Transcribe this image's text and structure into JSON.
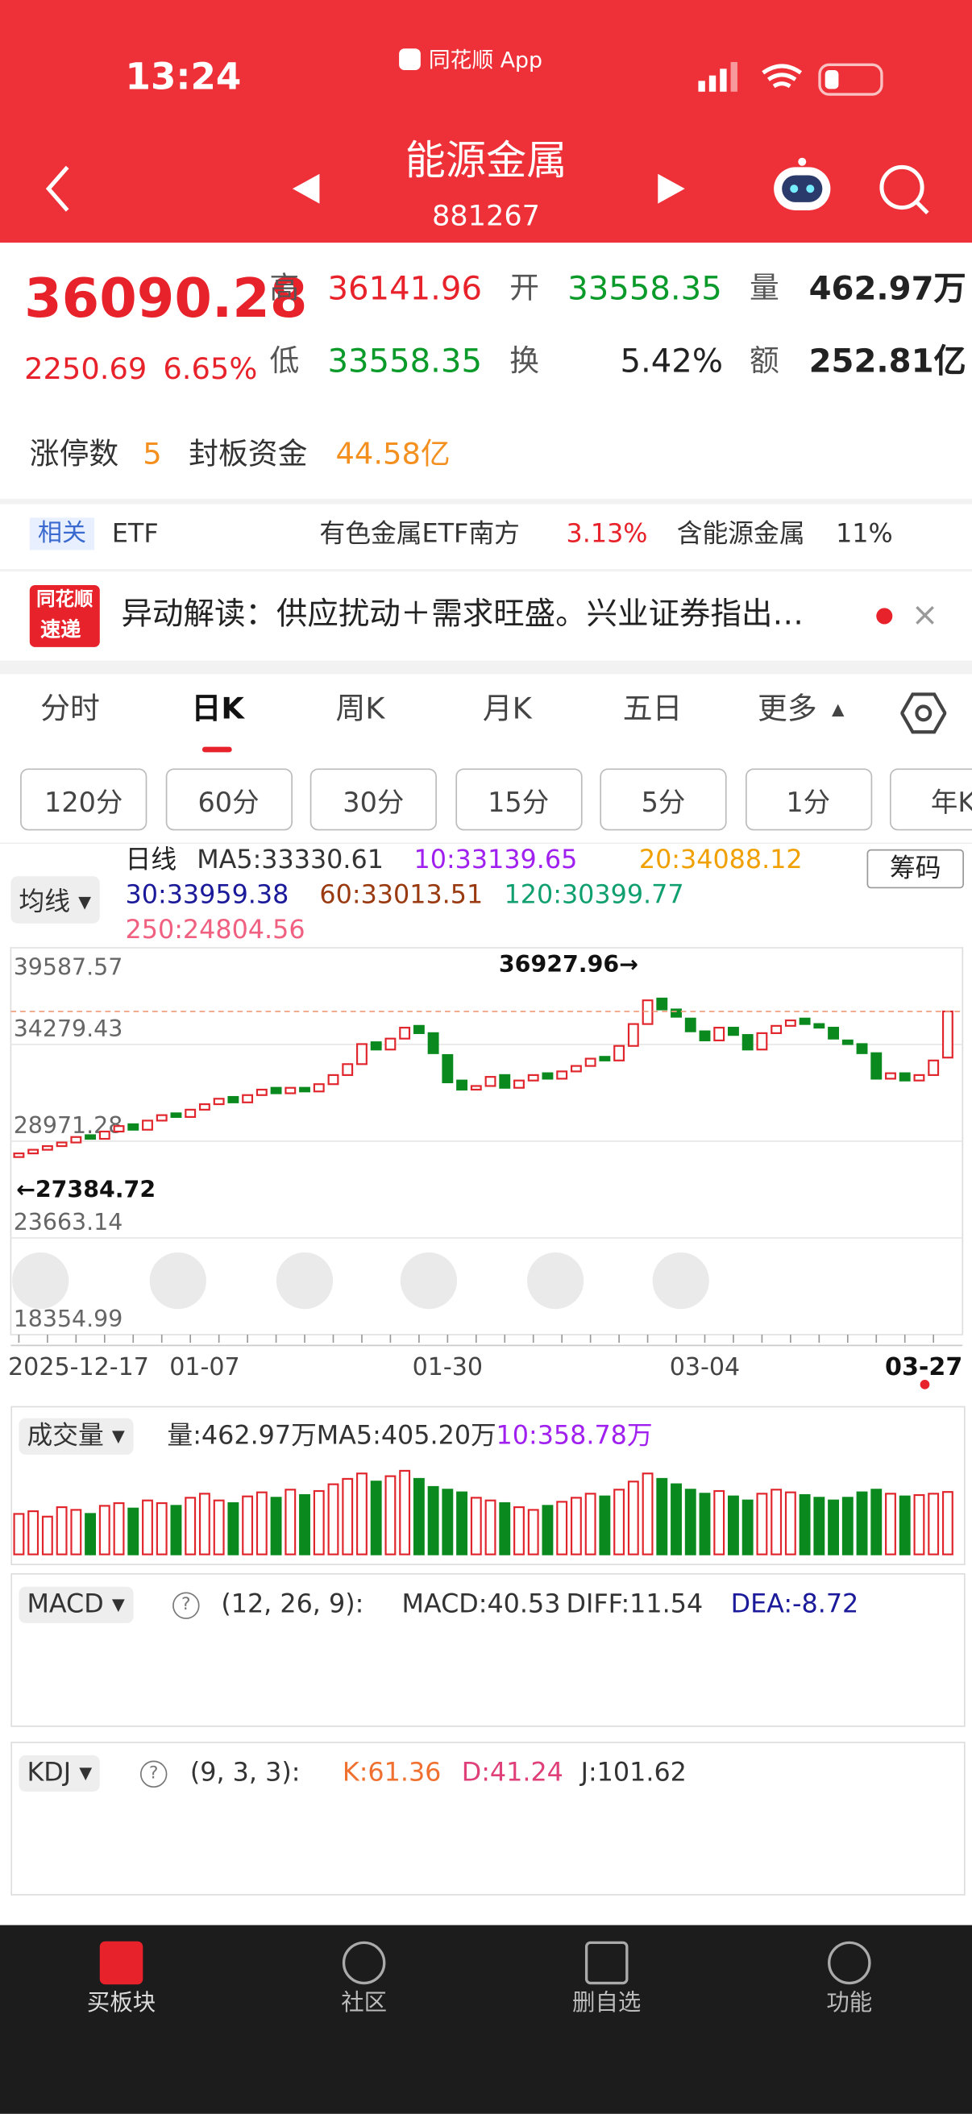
{
  "status_bar": {
    "time": "13:24",
    "app": "同花顺 App"
  },
  "header": {
    "title": "能源金属",
    "code": "881267"
  },
  "quote": {
    "price": "36090.28",
    "change": "2250.69",
    "change_pct": "6.65%",
    "row1": [
      {
        "label": "高",
        "value": "36141.96"
      },
      {
        "label": "开",
        "value": "33558.35"
      },
      {
        "label": "量",
        "value": "462.97万"
      }
    ],
    "row2": [
      {
        "label": "低",
        "value": "33558.35"
      },
      {
        "label": "换",
        "value": "5.42%"
      },
      {
        "label": "额",
        "value": "252.81亿"
      }
    ]
  },
  "limit": {
    "label": "涨停数",
    "count": "5",
    "fund_label": "封板资金",
    "fund": "44.58亿"
  },
  "etf": {
    "tag": "相关",
    "label": "ETF",
    "name": "有色金属ETF南方",
    "pct": "3.13%",
    "holding": "含能源金属",
    "holding_pct": "11%"
  },
  "news": {
    "logo_top": "同花顺",
    "logo_bottom": "速递",
    "text": "异动解读：供应扰动＋需求旺盛。兴业证券指出…"
  },
  "tabs": [
    "分时",
    "日K",
    "周K",
    "月K",
    "五日",
    "更多"
  ],
  "intervals": [
    "120分",
    "60分",
    "30分",
    "15分",
    "5分",
    "1分",
    "年K"
  ],
  "kline_header": {
    "selector": "均线",
    "period": "日线",
    "chip": "筹码",
    "ma": [
      {
        "text": "MA5:33330.61",
        "color": "#333333"
      },
      {
        "text": "10:33139.65",
        "color": "#a020f0"
      },
      {
        "text": "20:34088.12",
        "color": "#f0a000"
      },
      {
        "text": "30:33959.38",
        "color": "#1a1a9a"
      },
      {
        "text": "60:33013.51",
        "color": "#9a3a10"
      },
      {
        "text": "120:30399.77",
        "color": "#10a070"
      },
      {
        "text": "250:24804.56",
        "color": "#f06080"
      }
    ]
  },
  "volume_header": {
    "selector": "成交量",
    "texts": [
      {
        "text": "量:462.97万",
        "color": "#333333"
      },
      {
        "text": "MA5:405.20万",
        "color": "#333333"
      },
      {
        "text": "10:358.78万",
        "color": "#a020f0"
      }
    ]
  },
  "macd_header": {
    "selector": "MACD",
    "params": "(12, 26, 9):",
    "texts": [
      {
        "text": "MACD:40.53",
        "color": "#333333"
      },
      {
        "text": "DIFF:11.54",
        "color": "#333333"
      },
      {
        "text": "DEA:-8.72",
        "color": "#1a1a9a"
      }
    ]
  },
  "kdj_header": {
    "selector": "KDJ",
    "params": "(9, 3, 3):",
    "texts": [
      {
        "text": "K:61.36",
        "color": "#f07030"
      },
      {
        "text": "D:41.24",
        "color": "#e0407a"
      },
      {
        "text": "J:101.62",
        "color": "#333333"
      }
    ]
  },
  "nav": [
    "买板块",
    "社区",
    "删自选",
    "功能"
  ],
  "chart_data": [
    {
      "type": "candlestick",
      "up_color": "#e0262c",
      "down_color": "#0a8a1e",
      "categories": [
        "2025-12-17",
        null,
        null,
        null,
        null,
        null,
        null,
        null,
        null,
        null,
        null,
        null,
        null,
        "01-07",
        null,
        null,
        null,
        null,
        null,
        null,
        null,
        null,
        null,
        null,
        null,
        null,
        null,
        null,
        null,
        null,
        "01-30",
        null,
        null,
        null,
        null,
        null,
        null,
        null,
        null,
        null,
        null,
        null,
        null,
        null,
        null,
        null,
        null,
        null,
        "03-04",
        null,
        null,
        null,
        null,
        null,
        null,
        null,
        null,
        null,
        null,
        null,
        null,
        null,
        null,
        null,
        null,
        "03-27"
      ],
      "open": [
        28100,
        28300,
        28500,
        28700,
        28900,
        29300,
        29100,
        29500,
        29900,
        29600,
        30100,
        30500,
        30300,
        30700,
        31000,
        31400,
        31100,
        31500,
        31900,
        31600,
        31900,
        31700,
        32100,
        32600,
        33200,
        34400,
        34000,
        34600,
        35300,
        34900,
        33700,
        32300,
        31800,
        32000,
        32600,
        31900,
        32300,
        32700,
        32400,
        32800,
        33100,
        33600,
        33400,
        34200,
        35400,
        36800,
        36200,
        35700,
        35000,
        34500,
        35200,
        34800,
        34000,
        34900,
        35300,
        35700,
        35400,
        35200,
        34500,
        34300,
        33800,
        32400,
        32700,
        32300,
        32600,
        33558.35
      ],
      "close": [
        28300,
        28500,
        28700,
        28900,
        29200,
        29100,
        29500,
        29800,
        29600,
        30100,
        30400,
        30300,
        30700,
        31000,
        31300,
        31100,
        31500,
        31800,
        31600,
        31900,
        31700,
        32100,
        32600,
        33200,
        34300,
        34000,
        34600,
        35200,
        34900,
        33800,
        32200,
        31800,
        32000,
        32500,
        31900,
        32300,
        32600,
        32400,
        32800,
        33100,
        33500,
        33400,
        34200,
        35400,
        36700,
        36200,
        35800,
        35000,
        34500,
        35200,
        34800,
        34000,
        34900,
        35300,
        35600,
        35400,
        35200,
        34600,
        34300,
        33800,
        32400,
        32700,
        32300,
        32600,
        33400,
        36090.28
      ],
      "ylim": [
        18354.99,
        39587.57
      ],
      "yticks": [
        39587.57,
        34279.43,
        28971.28,
        23663.14,
        18354.99
      ],
      "annotations": {
        "high": "36927.96→",
        "low": "←27384.72"
      }
    },
    {
      "type": "bar",
      "ylim": [
        0,
        650
      ],
      "values": [
        300,
        320,
        280,
        350,
        330,
        300,
        360,
        380,
        340,
        400,
        380,
        360,
        420,
        450,
        400,
        380,
        430,
        460,
        420,
        480,
        440,
        470,
        520,
        560,
        600,
        540,
        580,
        620,
        560,
        500,
        480,
        460,
        420,
        400,
        380,
        350,
        330,
        360,
        390,
        420,
        450,
        430,
        480,
        540,
        600,
        560,
        520,
        480,
        450,
        470,
        430,
        400,
        450,
        480,
        460,
        440,
        420,
        400,
        420,
        460,
        480,
        450,
        430,
        440,
        450,
        462.97
      ]
    }
  ]
}
